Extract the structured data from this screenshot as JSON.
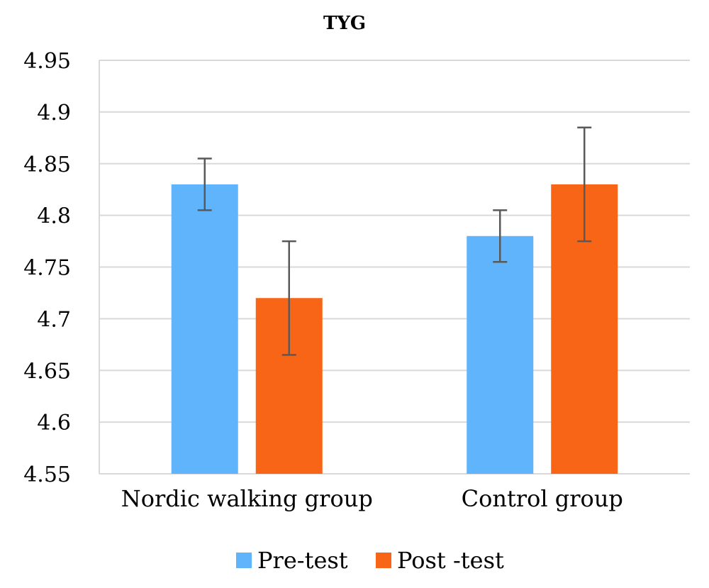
{
  "chart_data": {
    "type": "bar",
    "title": "TYG",
    "xlabel": "",
    "ylabel": "",
    "categories": [
      "Nordic walking group",
      "Control group"
    ],
    "ylim": [
      4.55,
      4.95
    ],
    "ytick_labels": [
      "4.55",
      "4.6",
      "4.65",
      "4.7",
      "4.75",
      "4.8",
      "4.85",
      "4.9",
      "4.95"
    ],
    "ytick_values": [
      4.55,
      4.6,
      4.65,
      4.7,
      4.75,
      4.8,
      4.85,
      4.9,
      4.95
    ],
    "grid": true,
    "legend_position": "bottom",
    "series": [
      {
        "name": "Pre-test",
        "color": "#5FB4FC",
        "values": [
          4.83,
          4.78
        ],
        "error": [
          0.025,
          0.025
        ]
      },
      {
        "name": "Post -test",
        "color": "#F86516",
        "values": [
          4.72,
          4.83
        ],
        "error": [
          0.055,
          0.055
        ]
      }
    ],
    "error_bar_color": "#595959",
    "gridline_color": "#D9D9D9"
  }
}
